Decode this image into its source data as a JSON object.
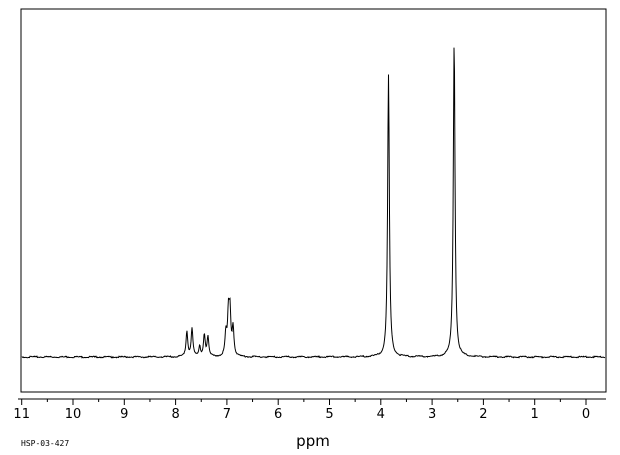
{
  "chart_data": {
    "type": "line",
    "title": "",
    "xlabel": "ppm",
    "ylabel": "",
    "x_reversed": true,
    "xlim": [
      11.2,
      -0.35
    ],
    "ylim": [
      0,
      100
    ],
    "grid": false,
    "legend": "none",
    "tick_labels": [
      "11",
      "10",
      "9",
      "8",
      "7",
      "6",
      "5",
      "4",
      "3",
      "2",
      "1",
      "0"
    ],
    "tick_values": [
      11,
      10,
      9,
      8,
      7,
      6,
      5,
      4,
      3,
      2,
      1,
      0
    ],
    "minor_tick_step": 0.5,
    "baseline": 0,
    "peaks": [
      {
        "ppm": 7.78,
        "height": 8
      },
      {
        "ppm": 7.68,
        "height": 9
      },
      {
        "ppm": 7.53,
        "height": 3
      },
      {
        "ppm": 7.44,
        "height": 7
      },
      {
        "ppm": 7.37,
        "height": 6
      },
      {
        "ppm": 7.02,
        "height": 7
      },
      {
        "ppm": 6.97,
        "height": 13
      },
      {
        "ppm": 6.94,
        "height": 13
      },
      {
        "ppm": 6.88,
        "height": 9
      },
      {
        "ppm": 3.85,
        "height": 89
      },
      {
        "ppm": 2.57,
        "height": 100
      }
    ],
    "line_color": "#000000"
  },
  "footer": {
    "code": "HSP-03-427"
  }
}
